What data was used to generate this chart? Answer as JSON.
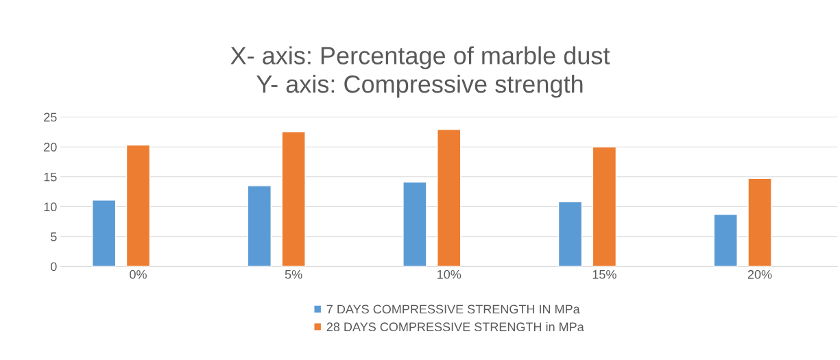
{
  "chart_data": {
    "type": "bar",
    "title": "X- axis: Percentage of marble dust\nY- axis: Compressive strength",
    "categories": [
      "0%",
      "5%",
      "10%",
      "15%",
      "20%"
    ],
    "series": [
      {
        "name": "7 DAYS COMPRESSIVE STRENGTH IN MPa",
        "color": "#5b9bd5",
        "values": [
          11.1,
          13.5,
          14.1,
          10.8,
          8.7
        ]
      },
      {
        "name": "28 DAYS COMPRESSIVE STRENGTH in MPa",
        "color": "#ed7d31",
        "values": [
          20.3,
          22.5,
          22.9,
          20.0,
          14.7
        ]
      }
    ],
    "ylim": [
      0,
      25
    ],
    "yticks": [
      0,
      5,
      10,
      15,
      20,
      25
    ],
    "grid": "y",
    "legend": "bottom"
  }
}
